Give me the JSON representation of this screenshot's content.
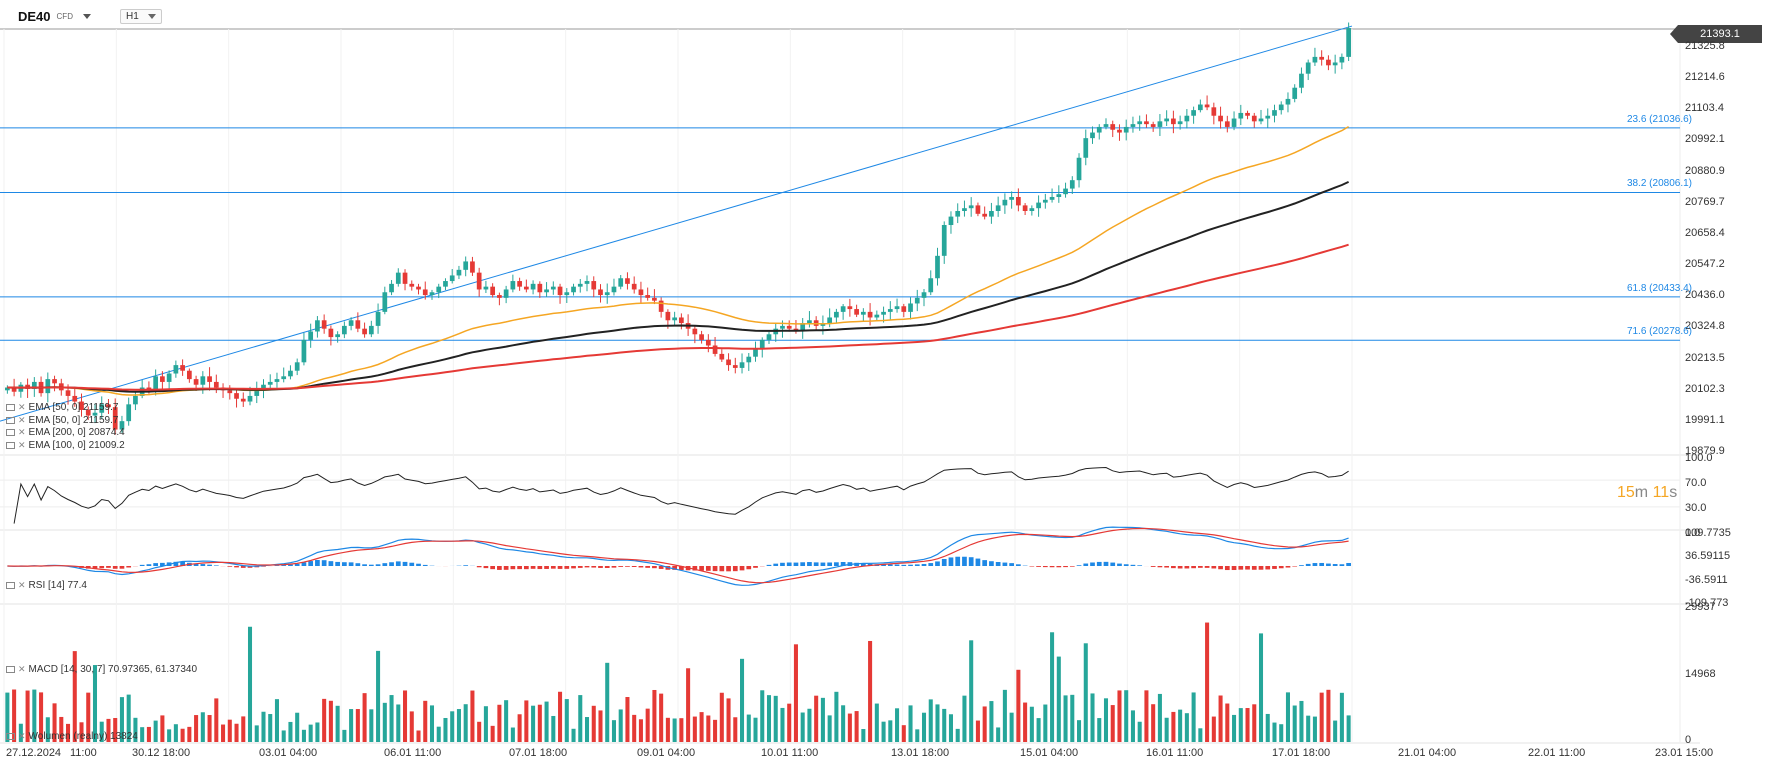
{
  "header": {
    "symbol": "DE40",
    "symbol_type": "CFD",
    "timeframe": "H1"
  },
  "price": {
    "current": "21393.1",
    "price_min": 19879.9,
    "price_max": 21393.1
  },
  "countdown": {
    "minutes": "15",
    "m": "m",
    "seconds": "11",
    "s": "s"
  },
  "y_axis_main": [
    "21393.1",
    "21325.8",
    "21214.6",
    "21103.4",
    "20992.1",
    "20880.9",
    "20769.7",
    "20658.4",
    "20547.2",
    "20436.0",
    "20324.8",
    "20213.5",
    "20102.3",
    "19991.1",
    "19879.9"
  ],
  "fib_levels": [
    {
      "label": "23.6 (21036.6)",
      "price": 21036.6
    },
    {
      "label": "38.2 (20806.1)",
      "price": 20806.1
    },
    {
      "label": "61.8 (20433.4)",
      "price": 20433.4
    },
    {
      "label": "71.6 (20278.6)",
      "price": 20278.6
    }
  ],
  "legend_main": [
    {
      "text": "EMA [50, 0] 21159.7"
    },
    {
      "text": "EMA [50, 0] 21159.7"
    },
    {
      "text": "EMA [200, 0] 20874.4"
    },
    {
      "text": "EMA [100, 0] 21009.2"
    }
  ],
  "rsi": {
    "legend": "RSI [14] 77.4",
    "ticks": [
      "100.0",
      "70.0",
      "30.0",
      "0.0"
    ]
  },
  "macd": {
    "legend": "MACD [14, 30, 7] 70.97365, 61.37340",
    "ticks": [
      "109.7735",
      "36.59115",
      "-36.5911",
      "-109.773"
    ]
  },
  "volume": {
    "legend": "Wolumen (realny) 13824",
    "ticks": [
      "29937",
      "14968",
      "0"
    ]
  },
  "x_axis": [
    "27.12.2024",
    "11:00",
    "30.12 18:00",
    "03.01 04:00",
    "06.01 11:00",
    "07.01 18:00",
    "09.01 04:00",
    "10.01 11:00",
    "13.01 18:00",
    "15.01 04:00",
    "16.01 11:00",
    "17.01 18:00",
    "21.01 04:00",
    "22.01 11:00",
    "23.01 15:00"
  ],
  "colors": {
    "up": "#26a69a",
    "down": "#e53935",
    "ema50": "#f5a623",
    "ema100": "#222222",
    "ema200": "#e53935",
    "fib": "#1e88e5",
    "macd_line": "#1e88e5",
    "signal_line": "#e53935"
  },
  "chart_data": {
    "type": "candlestick",
    "timeframe": "H1",
    "close_series": [
      20110,
      20095,
      20120,
      20105,
      20130,
      20090,
      20140,
      20125,
      20100,
      20080,
      20060,
      20030,
      20010,
      20020,
      20050,
      20040,
      19960,
      19990,
      20050,
      20080,
      20110,
      20100,
      20150,
      20130,
      20160,
      20190,
      20170,
      20140,
      20120,
      20150,
      20130,
      20110,
      20100,
      20090,
      20070,
      20060,
      20080,
      20100,
      20120,
      20130,
      20140,
      20150,
      20170,
      20200,
      20280,
      20310,
      20350,
      20320,
      20290,
      20300,
      20330,
      20350,
      20320,
      20300,
      20330,
      20380,
      20450,
      20480,
      20520,
      20480,
      20470,
      20460,
      20440,
      20450,
      20470,
      20490,
      20510,
      20530,
      20560,
      20520,
      20460,
      20470,
      20440,
      20430,
      20460,
      20490,
      20470,
      20460,
      20480,
      20450,
      20460,
      20470,
      20440,
      20450,
      20470,
      20480,
      20490,
      20460,
      20440,
      20450,
      20470,
      20500,
      20480,
      20460,
      20440,
      20430,
      20420,
      20380,
      20350,
      20360,
      20340,
      20320,
      20300,
      20280,
      20260,
      20230,
      20210,
      20190,
      20180,
      20200,
      20220,
      20250,
      20280,
      20300,
      20320,
      20330,
      20320,
      20310,
      20340,
      20350,
      20330,
      20340,
      20360,
      20380,
      20400,
      20390,
      20370,
      20380,
      20360,
      20370,
      20380,
      20390,
      20400,
      20380,
      20410,
      20430,
      20450,
      20500,
      20580,
      20690,
      20720,
      20740,
      20750,
      20760,
      20730,
      20720,
      20740,
      20760,
      20780,
      20790,
      20760,
      20740,
      20750,
      20770,
      20780,
      20790,
      20800,
      20820,
      20850,
      20930,
      21000,
      21020,
      21040,
      21050,
      21030,
      21020,
      21040,
      21050,
      21060,
      21050,
      21040,
      21060,
      21070,
      21050,
      21060,
      21080,
      21100,
      21120,
      21110,
      21080,
      21060,
      21040,
      21070,
      21090,
      21080,
      21060,
      21070,
      21080,
      21100,
      21120,
      21140,
      21180,
      21230,
      21270,
      21290,
      21280,
      21260,
      21270,
      21290,
      21393
    ],
    "ema50_final": 21159.7,
    "ema100_final": 21009.2,
    "ema200_final": 20874.4,
    "rsi_final": 77.4,
    "macd_final": 70.97365,
    "signal_final": 61.3734,
    "volume_final": 13824
  }
}
